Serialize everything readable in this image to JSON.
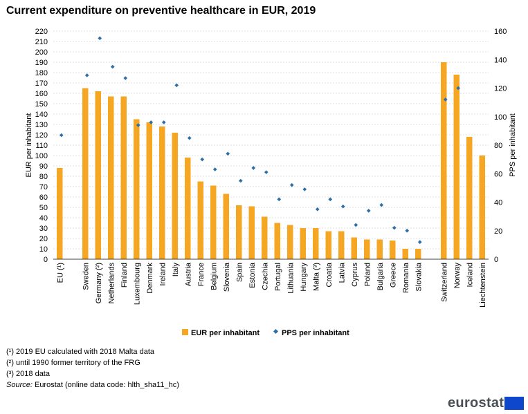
{
  "chart_data": {
    "type": "bar",
    "title": "Current expenditure on preventive healthcare in EUR, 2019",
    "ylabel_left": "EUR per inhabitant",
    "ylabel_right": "PPS per inhabitant",
    "ylim_left": [
      0,
      220
    ],
    "ylim_right": [
      0,
      160
    ],
    "yticks_left": [
      0,
      10,
      20,
      30,
      40,
      50,
      60,
      70,
      80,
      90,
      100,
      110,
      120,
      130,
      140,
      150,
      160,
      170,
      180,
      190,
      200,
      210,
      220
    ],
    "yticks_right": [
      0,
      20,
      40,
      60,
      80,
      100,
      120,
      140,
      160
    ],
    "grid": true,
    "colors": {
      "bar": "#f5a623",
      "marker": "#2e6fa7",
      "grid": "#bfbfbf"
    },
    "categories": [
      "EU (¹)",
      "",
      "Sweden",
      "Germany (²)",
      "Netherlands",
      "Finland",
      "Luxembourg",
      "Denmark",
      "Ireland",
      "Italy",
      "Austria",
      "France",
      "Belgium",
      "Slovenia",
      "Spain",
      "Estonia",
      "Czechia",
      "Portugal",
      "Lithuania",
      "Hungary",
      "Malta (³)",
      "Croatia",
      "Latvia",
      "Cyprus",
      "Poland",
      "Bulgaria",
      "Greece",
      "Romania",
      "Slovakia",
      "",
      "Switzerland",
      "Norway",
      "Iceland",
      "Liechtenstein"
    ],
    "series": [
      {
        "name": "EUR per inhabitant",
        "axis": "left",
        "kind": "bar",
        "values": [
          88,
          null,
          165,
          162,
          157,
          157,
          135,
          132,
          128,
          122,
          98,
          75,
          71,
          63,
          52,
          51,
          41,
          35,
          33,
          30,
          30,
          27,
          27,
          21,
          19,
          19,
          18,
          10,
          10,
          null,
          190,
          178,
          118,
          100
        ]
      },
      {
        "name": "PPS per inhabitant",
        "axis": "right",
        "kind": "marker",
        "values": [
          87,
          null,
          129,
          155,
          135,
          127,
          94,
          96,
          96,
          122,
          85,
          70,
          63,
          74,
          55,
          64,
          61,
          42,
          52,
          49,
          35,
          42,
          37,
          24,
          34,
          38,
          22,
          20,
          12,
          null,
          112,
          120,
          null,
          null
        ]
      }
    ]
  },
  "legend": {
    "bar_label": "EUR per inhabitant",
    "marker_label": "PPS per inhabitant"
  },
  "notes": [
    "(¹) 2019 EU calculated with 2018 Malta data",
    "(²) until 1990 former territory of the FRG",
    "(³) 2018 data"
  ],
  "source": {
    "label": "Source:",
    "text": " Eurostat (online data code: hlth_sha11_hc)"
  },
  "logo": {
    "text": "eurostat"
  }
}
